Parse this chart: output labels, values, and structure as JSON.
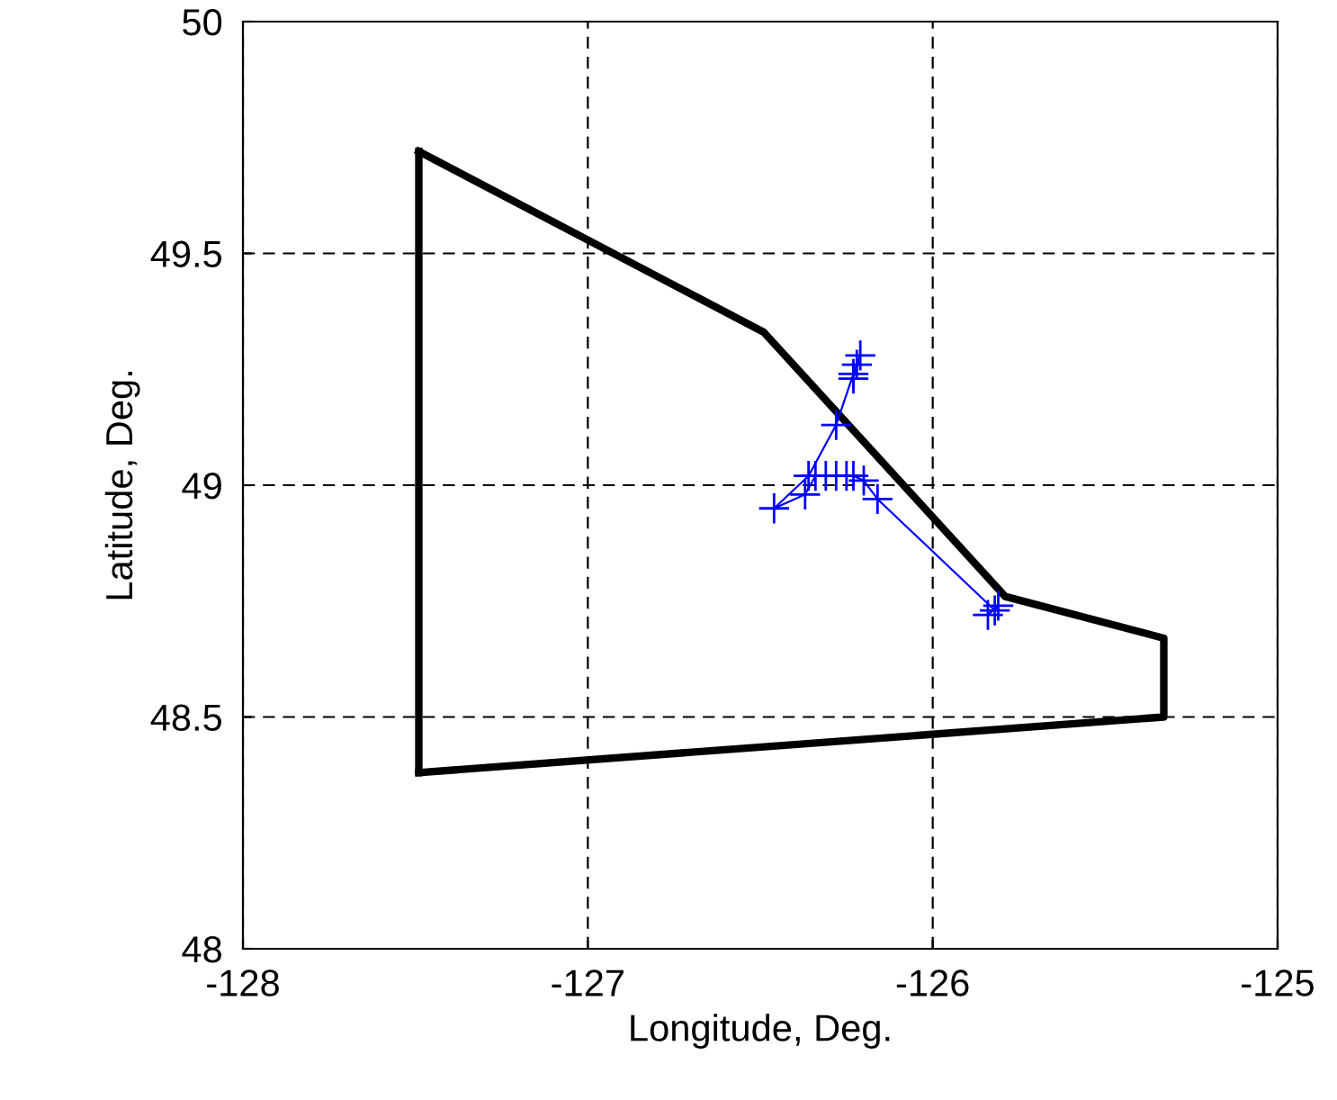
{
  "chart_data": {
    "type": "line",
    "xlabel": "Longitude, Deg.",
    "ylabel": "Latitude, Deg.",
    "xlim": [
      -128,
      -125
    ],
    "ylim": [
      48,
      50
    ],
    "xticks": [
      -128,
      -127,
      -126,
      -125
    ],
    "yticks": [
      48,
      48.5,
      49,
      49.5,
      50
    ],
    "grid": true,
    "series": [
      {
        "x": [
          -127.49,
          -126.49,
          -125.79,
          -125.33,
          -125.33,
          -127.49
        ],
        "values": [
          49.72,
          49.33,
          48.76,
          48.67,
          48.5,
          48.38
        ],
        "color": "#000000",
        "marker": "none"
      },
      {
        "x": [
          -127.49,
          -127.49
        ],
        "values": [
          48.38,
          49.72
        ],
        "color": "#000000",
        "marker": "none"
      },
      {
        "x": [
          -126.22,
          -126.23,
          -126.21,
          -126.23,
          -126.28,
          -126.36,
          -126.46,
          -126.37,
          -126.34,
          -126.31,
          -126.28,
          -126.25,
          -126.23,
          -126.2,
          -126.16,
          -125.82,
          -125.81,
          -125.84
        ],
        "values": [
          49.26,
          49.23,
          49.28,
          49.24,
          49.13,
          49.02,
          48.95,
          48.98,
          49.02,
          49.02,
          49.02,
          49.02,
          49.02,
          49.01,
          48.97,
          48.73,
          48.74,
          48.72
        ],
        "color": "#0000ff",
        "marker": "cross"
      }
    ]
  }
}
